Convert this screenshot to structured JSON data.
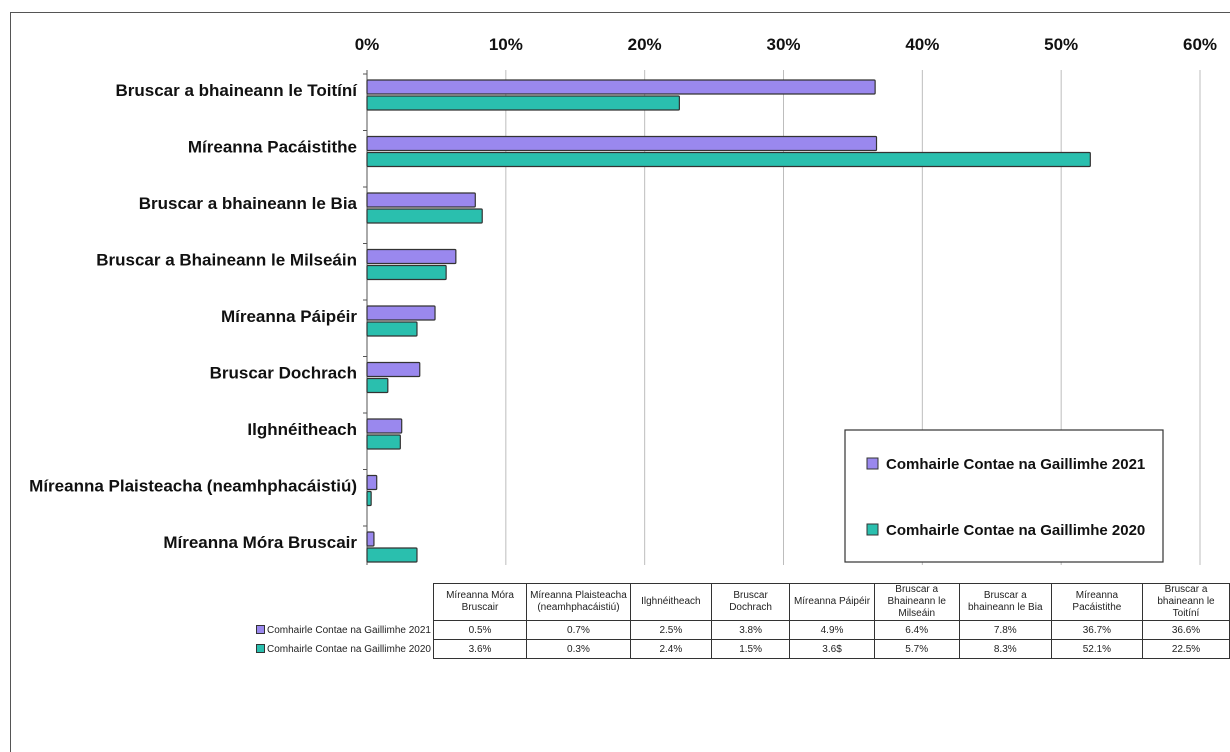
{
  "chart_data": {
    "type": "bar",
    "orientation": "horizontal",
    "categories": [
      "Bruscar a bhaineann le Toitíní",
      "Míreanna Pacáistithe",
      "Bruscar a bhaineann le Bia",
      "Bruscar a Bhaineann le Milseáin",
      "Míreanna Páipéir",
      "Bruscar Dochrach",
      "Ilghnéitheach",
      "Míreanna Plaisteacha (neamhphacáistiú)",
      "Míreanna Móra Bruscair"
    ],
    "series": [
      {
        "name": "Comhairle Contae na Gaillimhe 2021",
        "color": "#9a88ee",
        "values": [
          36.6,
          36.7,
          7.8,
          6.4,
          4.9,
          3.8,
          2.5,
          0.7,
          0.5
        ]
      },
      {
        "name": "Comhairle Contae na Gaillimhe 2020",
        "color": "#2abfae",
        "values": [
          22.5,
          52.1,
          8.3,
          5.7,
          3.6,
          1.5,
          2.4,
          0.3,
          3.6
        ]
      }
    ],
    "xlim": [
      0,
      60
    ],
    "xticks": [
      "0%",
      "10%",
      "20%",
      "30%",
      "40%",
      "50%",
      "60%"
    ],
    "grid": true,
    "legend_position": "lower-right",
    "table": {
      "headers": [
        "Míreanna Móra Bruscair",
        "Míreanna Plaisteacha (neamhphacáistiú)",
        "Ilghnéitheach",
        "Bruscar Dochrach",
        "Míreanna Páipéir",
        "Bruscar a Bhaineann le Milseáin",
        "Bruscar a bhaineann le Bia",
        "Míreanna Pacáistithe",
        "Bruscar a bhaineann le Toitíní"
      ],
      "rows": [
        {
          "label": "Comhairle Contae na Gaillimhe 2021",
          "cells": [
            "0.5%",
            "0.7%",
            "2.5%",
            "3.8%",
            "4.9%",
            "6.4%",
            "7.8%",
            "36.7%",
            "36.6%"
          ]
        },
        {
          "label": "Comhairle Contae na Gaillimhe 2020",
          "cells": [
            "3.6%",
            "0.3%",
            "2.4%",
            "1.5%",
            "3.6$",
            "5.7%",
            "8.3%",
            "52.1%",
            "22.5%"
          ]
        }
      ]
    }
  }
}
